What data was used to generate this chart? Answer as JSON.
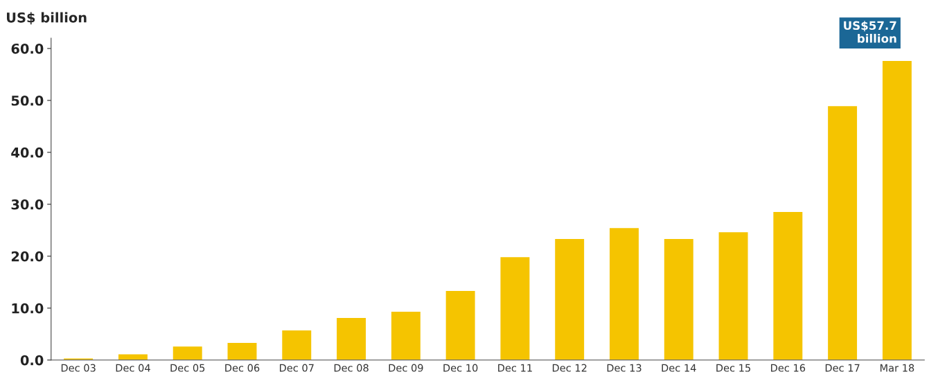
{
  "chart_data": {
    "type": "bar",
    "ylabel": "US$ billion",
    "categories": [
      "Dec 03",
      "Dec 04",
      "Dec 05",
      "Dec 06",
      "Dec 07",
      "Dec 08",
      "Dec 09",
      "Dec 10",
      "Dec 11",
      "Dec 12",
      "Dec 13",
      "Dec 14",
      "Dec 15",
      "Dec 16",
      "Dec 17",
      "Mar 18"
    ],
    "values": [
      0.4,
      1.2,
      2.7,
      3.4,
      5.8,
      8.2,
      9.4,
      13.4,
      19.9,
      23.4,
      25.5,
      23.4,
      24.7,
      28.6,
      49.0,
      57.7
    ],
    "color": "#f5c400",
    "ylim": [
      0,
      62
    ],
    "yticks": [
      {
        "value": 0,
        "label": "0.0"
      },
      {
        "value": 10,
        "label": "10.0"
      },
      {
        "value": 20,
        "label": "20.0"
      },
      {
        "value": 30,
        "label": "30.0"
      },
      {
        "value": 40,
        "label": "40.0"
      },
      {
        "value": 50,
        "label": "50.0"
      },
      {
        "value": 60,
        "label": "60.0"
      }
    ],
    "grid": false,
    "annotations": [
      {
        "text": "US$57.7\nbillion",
        "x": "Mar 18",
        "y": 57.7
      }
    ]
  }
}
